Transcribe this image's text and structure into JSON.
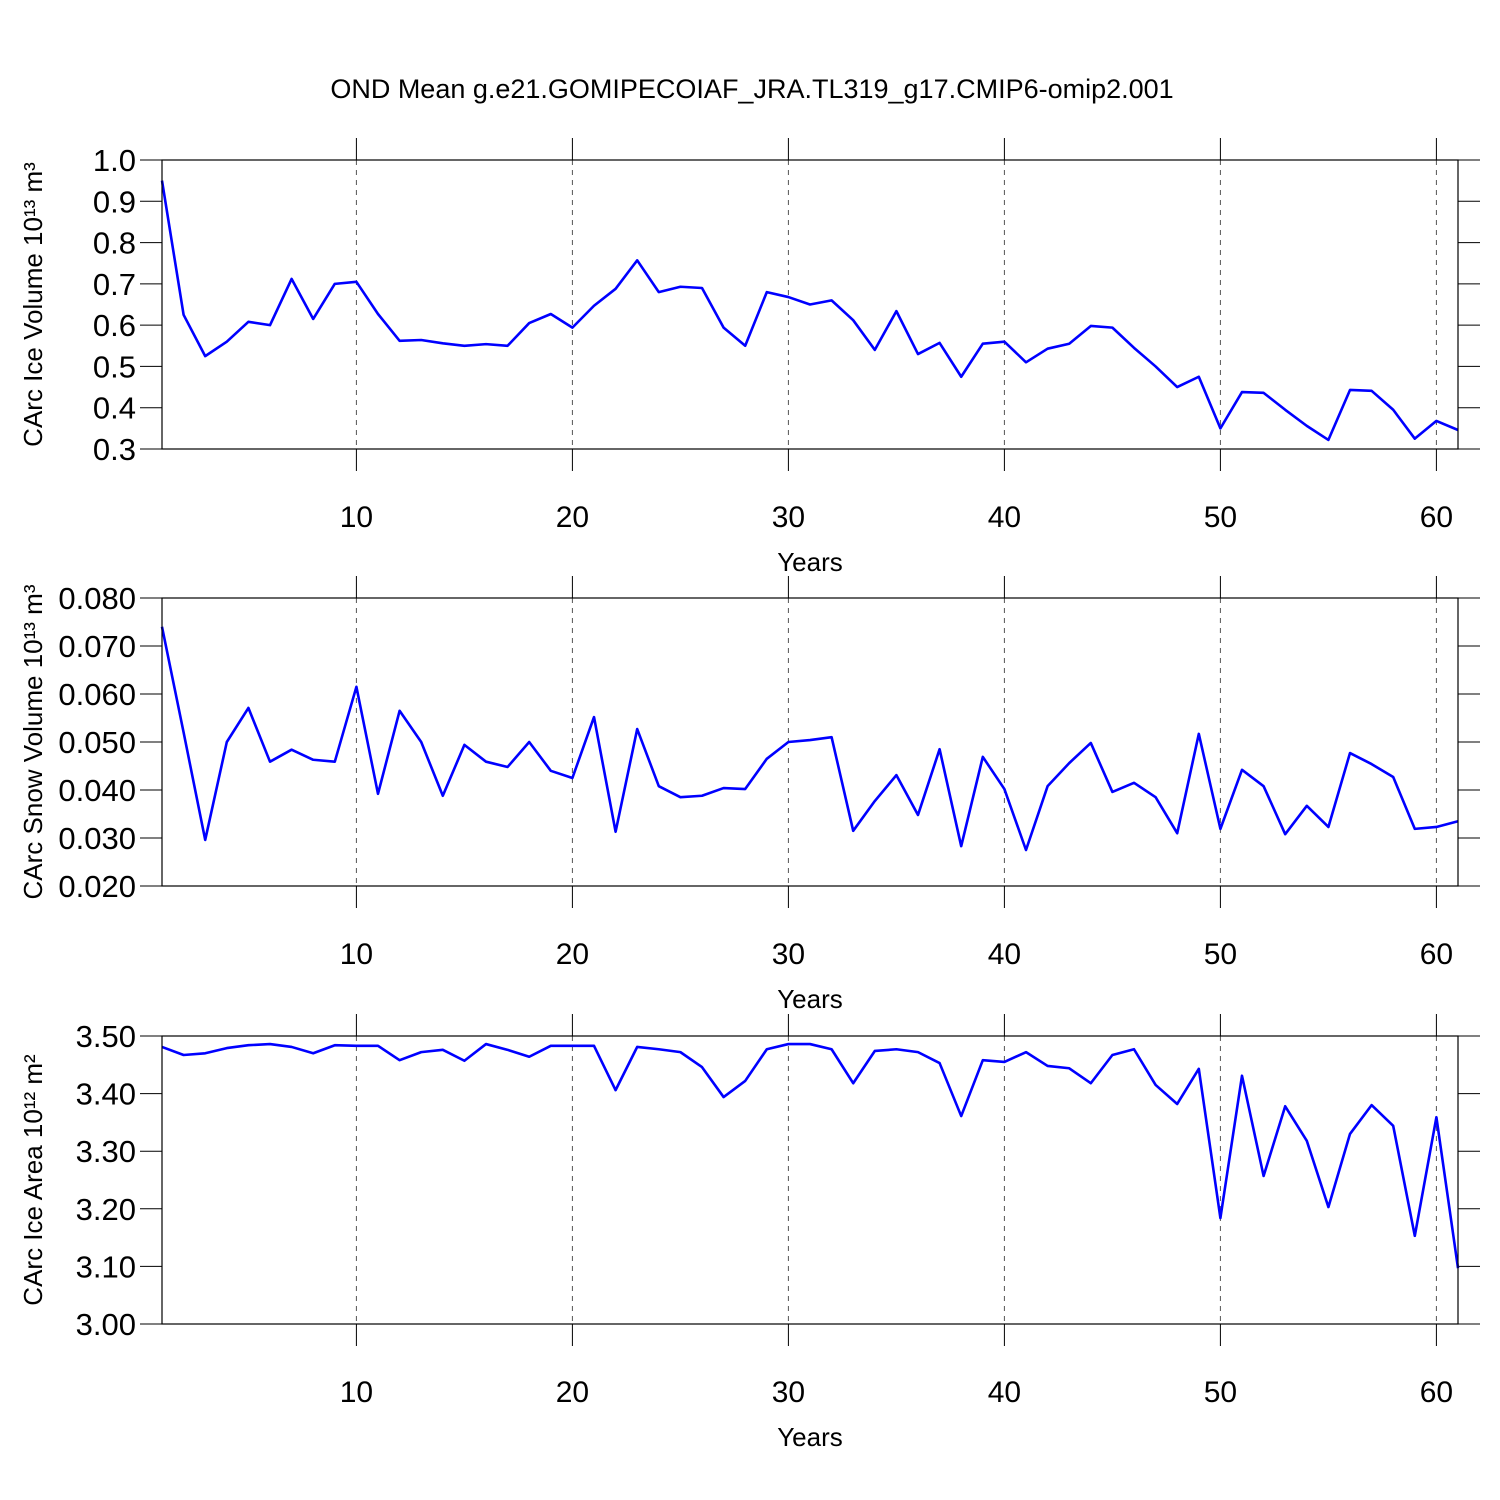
{
  "chart_data": [
    {
      "type": "line",
      "title": "OND Mean g.e21.GOMIPECOIAF_JRA.TL319_g17.CMIP6-omip2.001",
      "xlabel": "Years",
      "ylabel": "CArc Ice Volume 10¹³ m³",
      "x": [
        1,
        2,
        3,
        4,
        5,
        6,
        7,
        8,
        9,
        10,
        11,
        12,
        13,
        14,
        15,
        16,
        17,
        18,
        19,
        20,
        21,
        22,
        23,
        24,
        25,
        26,
        27,
        28,
        29,
        30,
        31,
        32,
        33,
        34,
        35,
        36,
        37,
        38,
        39,
        40,
        41,
        42,
        43,
        44,
        45,
        46,
        47,
        48,
        49,
        50,
        51,
        52,
        53,
        54,
        55,
        56,
        57,
        58,
        59,
        60,
        61
      ],
      "series": [
        {
          "color": "#0000ff",
          "values": [
            0.95,
            0.625,
            0.525,
            0.56,
            0.608,
            0.6,
            0.712,
            0.615,
            0.7,
            0.705,
            0.627,
            0.562,
            0.564,
            0.556,
            0.55,
            0.554,
            0.55,
            0.605,
            0.627,
            0.594,
            0.647,
            0.688,
            0.757,
            0.68,
            0.693,
            0.69,
            0.594,
            0.55,
            0.68,
            0.668,
            0.65,
            0.66,
            0.612,
            0.54,
            0.634,
            0.53,
            0.557,
            0.475,
            0.555,
            0.56,
            0.51,
            0.543,
            0.555,
            0.598,
            0.594,
            0.545,
            0.5,
            0.45,
            0.475,
            0.35,
            0.438,
            0.436,
            0.395,
            0.356,
            0.322,
            0.443,
            0.441,
            0.395,
            0.325,
            0.368,
            0.346
          ]
        }
      ],
      "xlim": [
        1,
        61
      ],
      "xticks": [
        10,
        20,
        30,
        40,
        50,
        60
      ],
      "ylim": [
        0.3,
        1.0
      ],
      "yticks": [
        0.3,
        0.4,
        0.5,
        0.6,
        0.7,
        0.8,
        0.9,
        {
          "value": 1.0,
          "label": "1.0"
        }
      ],
      "grid": "x-dashed"
    },
    {
      "type": "line",
      "xlabel": "Years",
      "ylabel": "CArc Snow Volume 10¹³ m³",
      "x": [
        1,
        2,
        3,
        4,
        5,
        6,
        7,
        8,
        9,
        10,
        11,
        12,
        13,
        14,
        15,
        16,
        17,
        18,
        19,
        20,
        21,
        22,
        23,
        24,
        25,
        26,
        27,
        28,
        29,
        30,
        31,
        32,
        33,
        34,
        35,
        36,
        37,
        38,
        39,
        40,
        41,
        42,
        43,
        44,
        45,
        46,
        47,
        48,
        49,
        50,
        51,
        52,
        53,
        54,
        55,
        56,
        57,
        58,
        59,
        60,
        61
      ],
      "series": [
        {
          "color": "#0000ff",
          "values": [
            0.074,
            0.052,
            0.0296,
            0.05,
            0.0571,
            0.0459,
            0.0484,
            0.0463,
            0.0459,
            0.0615,
            0.0392,
            0.0565,
            0.05,
            0.0388,
            0.0494,
            0.0459,
            0.0448,
            0.05,
            0.044,
            0.0425,
            0.0552,
            0.0313,
            0.0527,
            0.0408,
            0.0385,
            0.0388,
            0.0404,
            0.0402,
            0.0465,
            0.05,
            0.0504,
            0.051,
            0.0315,
            0.0377,
            0.0431,
            0.0348,
            0.0485,
            0.0283,
            0.0469,
            0.0402,
            0.0275,
            0.0408,
            0.0456,
            0.0498,
            0.0396,
            0.0415,
            0.0385,
            0.031,
            0.0517,
            0.0319,
            0.0442,
            0.0408,
            0.0308,
            0.0367,
            0.0323,
            0.0477,
            0.0454,
            0.0427,
            0.0319,
            0.0323,
            0.0335
          ]
        }
      ],
      "xlim": [
        1,
        61
      ],
      "xticks": [
        10,
        20,
        30,
        40,
        50,
        60
      ],
      "ylim": [
        0.02,
        0.08
      ],
      "yticks": [
        {
          "value": 0.02,
          "label": "0.020"
        },
        {
          "value": 0.03,
          "label": "0.030"
        },
        {
          "value": 0.04,
          "label": "0.040"
        },
        {
          "value": 0.05,
          "label": "0.050"
        },
        {
          "value": 0.06,
          "label": "0.060"
        },
        {
          "value": 0.07,
          "label": "0.070"
        },
        {
          "value": 0.08,
          "label": "0.080"
        }
      ],
      "grid": "x-dashed"
    },
    {
      "type": "line",
      "xlabel": "Years",
      "ylabel": "CArc Ice Area 10¹² m²",
      "x": [
        1,
        2,
        3,
        4,
        5,
        6,
        7,
        8,
        9,
        10,
        11,
        12,
        13,
        14,
        15,
        16,
        17,
        18,
        19,
        20,
        21,
        22,
        23,
        24,
        25,
        26,
        27,
        28,
        29,
        30,
        31,
        32,
        33,
        34,
        35,
        36,
        37,
        38,
        39,
        40,
        41,
        42,
        43,
        44,
        45,
        46,
        47,
        48,
        49,
        50,
        51,
        52,
        53,
        54,
        55,
        56,
        57,
        58,
        59,
        60,
        61
      ],
      "series": [
        {
          "color": "#0000ff",
          "values": [
            3.481,
            3.467,
            3.47,
            3.479,
            3.484,
            3.486,
            3.481,
            3.47,
            3.484,
            3.483,
            3.483,
            3.458,
            3.472,
            3.476,
            3.457,
            3.486,
            3.476,
            3.464,
            3.483,
            3.483,
            3.483,
            3.406,
            3.481,
            3.477,
            3.472,
            3.446,
            3.394,
            3.422,
            3.477,
            3.486,
            3.486,
            3.477,
            3.418,
            3.474,
            3.477,
            3.472,
            3.453,
            3.361,
            3.458,
            3.455,
            3.472,
            3.448,
            3.444,
            3.418,
            3.467,
            3.477,
            3.415,
            3.382,
            3.443,
            3.184,
            3.431,
            3.257,
            3.378,
            3.318,
            3.203,
            3.33,
            3.38,
            3.344,
            3.153,
            3.359,
            3.097
          ]
        }
      ],
      "xlim": [
        1,
        61
      ],
      "xticks": [
        10,
        20,
        30,
        40,
        50,
        60
      ],
      "ylim": [
        3.0,
        3.5
      ],
      "yticks": [
        {
          "value": 3.0,
          "label": "3.00"
        },
        {
          "value": 3.1,
          "label": "3.10"
        },
        {
          "value": 3.2,
          "label": "3.20"
        },
        {
          "value": 3.3,
          "label": "3.30"
        },
        {
          "value": 3.4,
          "label": "3.40"
        },
        {
          "value": 3.5,
          "label": "3.50"
        }
      ],
      "grid": "x-dashed"
    }
  ]
}
